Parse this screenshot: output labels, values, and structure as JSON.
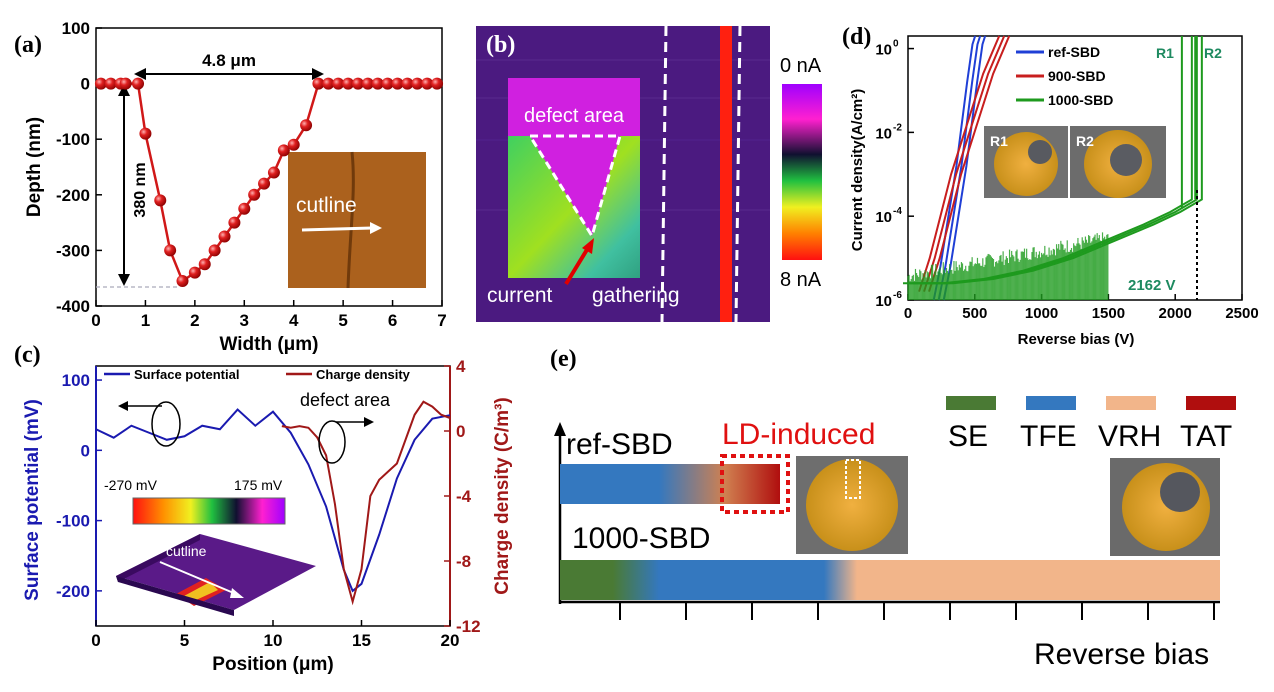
{
  "chart_data": [
    {
      "id": "a",
      "type": "line",
      "panel_label": "(a)",
      "xlabel": "Width (μm)",
      "ylabel": "Depth (nm)",
      "xlim": [
        0,
        7
      ],
      "ylim": [
        -400,
        100
      ],
      "xticks": [
        "0",
        "1",
        "2",
        "3",
        "4",
        "5",
        "6",
        "7"
      ],
      "yticks": [
        "100",
        "0",
        "-100",
        "-200",
        "-300",
        "-400"
      ],
      "x": [
        0.1,
        0.3,
        0.5,
        0.6,
        0.85,
        1.0,
        1.3,
        1.5,
        1.75,
        2.0,
        2.2,
        2.4,
        2.6,
        2.8,
        3.0,
        3.2,
        3.4,
        3.6,
        3.8,
        4.0,
        4.25,
        4.5,
        4.7,
        4.9,
        5.1,
        5.3,
        5.5,
        5.7,
        5.9,
        6.1,
        6.3,
        6.5,
        6.7,
        6.9
      ],
      "y": [
        0,
        0,
        0,
        0,
        0,
        -90,
        -210,
        -300,
        -355,
        -340,
        -325,
        -300,
        -275,
        -250,
        -225,
        -200,
        -180,
        -160,
        -120,
        -110,
        -75,
        0,
        0,
        0,
        0,
        0,
        0,
        0,
        0,
        0,
        0,
        0,
        0,
        0
      ],
      "annotations": {
        "width_label": "4.8 μm",
        "depth_label": "380 nm",
        "inset_label": "cutline"
      }
    },
    {
      "id": "b",
      "type": "heatmap",
      "panel_label": "(b)",
      "colorbar_min": "0 nA",
      "colorbar_max": "8 nA",
      "annotations": {
        "defect": "defect area",
        "current": "current",
        "gathering": "gathering"
      }
    },
    {
      "id": "d",
      "type": "line",
      "panel_label": "(d)",
      "xlabel": "Reverse bias (V)",
      "ylabel": "Current density(A/cm²)",
      "xlim": [
        0,
        2500
      ],
      "ylim_log10": [
        -6,
        0.3
      ],
      "xticks": [
        "0",
        "500",
        "1000",
        "1500",
        "2000",
        "2500"
      ],
      "yticks": [
        {
          "base": "10",
          "exp": "0",
          "v": 0
        },
        {
          "base": "10",
          "exp": "-2",
          "v": -2
        },
        {
          "base": "10",
          "exp": "-4",
          "v": -4
        },
        {
          "base": "10",
          "exp": "-6",
          "v": -6
        }
      ],
      "series": [
        {
          "name": "ref-SBD",
          "color": "#1f3fd6",
          "x": [
            230,
            280,
            320,
            360,
            400,
            440,
            480,
            520,
            540
          ],
          "log10y": [
            -6,
            -5.2,
            -4.4,
            -3.6,
            -2.8,
            -1.8,
            -0.8,
            0.1,
            0.3
          ]
        },
        {
          "name": "900-SBD",
          "color": "#c81e1e",
          "x": [
            120,
            200,
            280,
            360,
            440,
            520,
            600,
            680,
            720
          ],
          "log10y": [
            -5.8,
            -5.0,
            -4.0,
            -3.0,
            -2.2,
            -1.4,
            -0.6,
            0.0,
            0.3
          ]
        },
        {
          "name": "1000-SBD",
          "color": "#1e9a1e",
          "x": [
            0,
            300,
            600,
            900,
            1200,
            1500,
            1800,
            2000,
            2162,
            2162
          ],
          "log10y": [
            -5.6,
            -5.6,
            -5.5,
            -5.3,
            -5.0,
            -4.6,
            -4.2,
            -3.9,
            -3.6,
            0.3
          ]
        }
      ],
      "annotations": {
        "r1": "R1",
        "r2": "R2",
        "r1_inset": "R1",
        "r2_inset": "R2",
        "breakdown": "2162 V"
      }
    },
    {
      "id": "c",
      "type": "line",
      "panel_label": "(c)",
      "xlabel": "Position (μm)",
      "ylabel": "Surface potential (mV)",
      "ylabel_right": "Charge density (C/m³)",
      "xlim": [
        0,
        20
      ],
      "ylim": [
        -250,
        120
      ],
      "ylim_right": [
        -12,
        4
      ],
      "xticks": [
        "0",
        "5",
        "10",
        "15",
        "20"
      ],
      "yticks": [
        "100",
        "0",
        "-100",
        "-200"
      ],
      "yticks_right": [
        "4",
        "0",
        "-4",
        "-8",
        "-12"
      ],
      "series": [
        {
          "name": "Surface potential",
          "color": "#1a1ab0",
          "x": [
            0,
            1,
            2,
            3,
            4,
            5,
            6,
            7,
            8,
            9,
            10,
            11,
            12,
            13,
            14,
            14.5,
            15,
            16,
            17,
            18,
            19,
            20
          ],
          "y": [
            30,
            18,
            35,
            25,
            15,
            20,
            35,
            30,
            58,
            35,
            55,
            25,
            -20,
            -80,
            -170,
            -200,
            -190,
            -120,
            -40,
            15,
            45,
            50
          ]
        },
        {
          "name": "Charge density",
          "color": "#a01818",
          "x": [
            10.5,
            11,
            11.5,
            12,
            12.5,
            13,
            13.5,
            14,
            14.5,
            15,
            15.5,
            16,
            16.5,
            17,
            17.5,
            18,
            18.5,
            19,
            19.5,
            20
          ],
          "y": [
            0.3,
            0.2,
            0.3,
            0.2,
            -0.4,
            -1.5,
            -4.5,
            -8.5,
            -10.5,
            -8.5,
            -4,
            -3,
            -2.5,
            -2.0,
            -0.5,
            1.0,
            1.8,
            1.5,
            1.0,
            0.8
          ]
        }
      ],
      "annotations": {
        "defect": "defect area",
        "colorbar_min": "-270 mV",
        "colorbar_max": "175 mV",
        "cutline": "cutline"
      }
    },
    {
      "id": "e",
      "type": "diagram",
      "panel_label": "(e)",
      "legend": [
        {
          "name": "SE",
          "color": "#4a7a34"
        },
        {
          "name": "TFE",
          "color": "#3478bf"
        },
        {
          "name": "VRH",
          "color": "#f2b58a"
        },
        {
          "name": "TAT",
          "color": "#b00e0e"
        }
      ],
      "labels": {
        "ref": "ref-SBD",
        "ld": "LD-induced",
        "sbd1000": "1000-SBD",
        "xaxis": "Reverse bias"
      }
    }
  ]
}
